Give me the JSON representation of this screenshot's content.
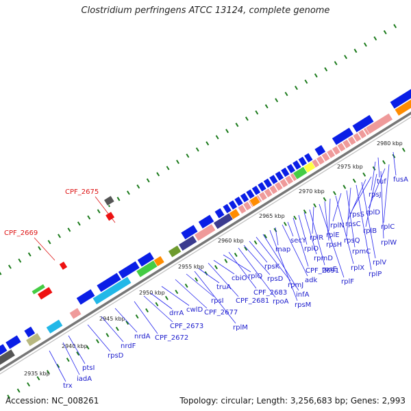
{
  "title": "Clostridium perfringens ATCC 13124, complete genome",
  "footer": {
    "accession": "Accession: NC_008261",
    "topology": "Topology: circular; Length: 3,256,683 bp; Genes: 2,993"
  },
  "colors": {
    "backbone": "#777777",
    "gene_blue": "#0a1ee6",
    "gene_pink": "#ef9a9a",
    "gene_red": "#ee1111",
    "gene_navy": "#3b3b8f",
    "gene_cyan": "#22b8e8",
    "gene_green": "#44cc44",
    "gene_orange": "#ff8c00",
    "gene_olive": "#6e9a2e",
    "gene_khaki": "#b8b880",
    "gene_gray": "#555555",
    "label_blue": "#1a1acc",
    "label_red": "#dd1111",
    "tick_green": "#1a7a1a"
  },
  "kbp_ticks": [
    "2935 kbp",
    "2940 kbp",
    "2945 kbp",
    "2950 kbp",
    "2955 kbp",
    "2960 kbp",
    "2965 kbp",
    "2970 kbp",
    "2975 kbp",
    "2980 kbp"
  ],
  "gene_labels": [
    "trx",
    "iadA",
    "ptsI",
    "rpsD",
    "nrdF",
    "nrdA",
    "CPF_2672",
    "CPF_2673",
    "drrA",
    "cwlD",
    "CPF_2677",
    "rpsI",
    "rplM",
    "truA",
    "CPF_2681",
    "cbiO",
    "rplQ",
    "CPF_2683",
    "rpoA",
    "rpsD",
    "rpsK",
    "rpmJ",
    "infA",
    "rpsM",
    "map",
    "adk",
    "secY",
    "CPF_2691",
    "rplO",
    "rpmD",
    "rpsE",
    "rplR",
    "rplF",
    "rpsH",
    "rplE",
    "rplX",
    "rplN",
    "rpmC",
    "rpsQ",
    "rplP",
    "rplV",
    "rpsC",
    "rpsS",
    "rplB",
    "rplW",
    "rplD",
    "rplC",
    "rpsJ",
    "tuf",
    "fusA"
  ],
  "red_labels": [
    "CPF_2675",
    "CPF_2669"
  ]
}
